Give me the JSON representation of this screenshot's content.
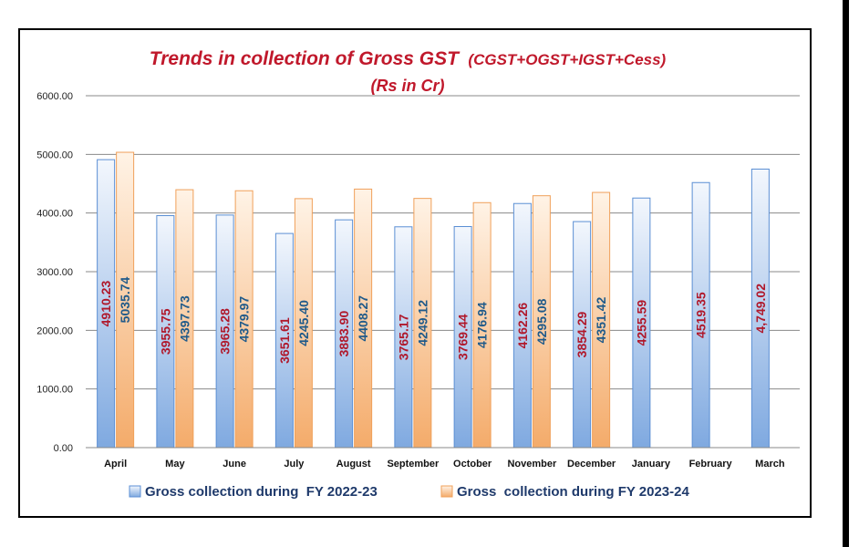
{
  "chart_data": {
    "type": "bar",
    "title": "Trends in collection of Gross GST",
    "title_suffix": "(CGST+OGST+IGST+Cess)",
    "subtitle": "(Rs in Cr)",
    "ylim": [
      0,
      6000
    ],
    "yticks": [
      "0.00",
      "1000.00",
      "2000.00",
      "3000.00",
      "4000.00",
      "5000.00",
      "6000.00"
    ],
    "grid": true,
    "legend_position": "bottom",
    "categories": [
      "April",
      "May",
      "June",
      "July",
      "August",
      "September",
      "October",
      "November",
      "December",
      "January",
      "February",
      "March"
    ],
    "series": [
      {
        "name": "Gross collection during  FY 2022-23",
        "color": "#5b8fd4",
        "label_color": "#b0182b",
        "values": [
          4910.23,
          3955.75,
          3965.28,
          3651.61,
          3883.9,
          3765.17,
          3769.44,
          4162.26,
          3854.29,
          4255.59,
          4519.35,
          4749.02
        ],
        "labels": [
          "4910.23",
          "3955.75",
          "3965.28",
          "3651.61",
          "3883.90",
          "3765.17",
          "3769.44",
          "4162.26",
          "3854.29",
          "4255.59",
          "4519.35",
          "4,749.02"
        ]
      },
      {
        "name": "Gross  collection during FY 2023-24",
        "color": "#f0a05a",
        "label_color": "#1f5a8a",
        "values": [
          5035.74,
          4397.73,
          4379.97,
          4245.4,
          4408.27,
          4249.12,
          4176.94,
          4295.08,
          4351.42,
          null,
          null,
          null
        ],
        "labels": [
          "5035.74",
          "4397.73",
          "4379.97",
          "4245.40",
          "4408.27",
          "4249.12",
          "4176.94",
          "4295.08",
          "4351.42",
          null,
          null,
          null
        ]
      }
    ]
  }
}
